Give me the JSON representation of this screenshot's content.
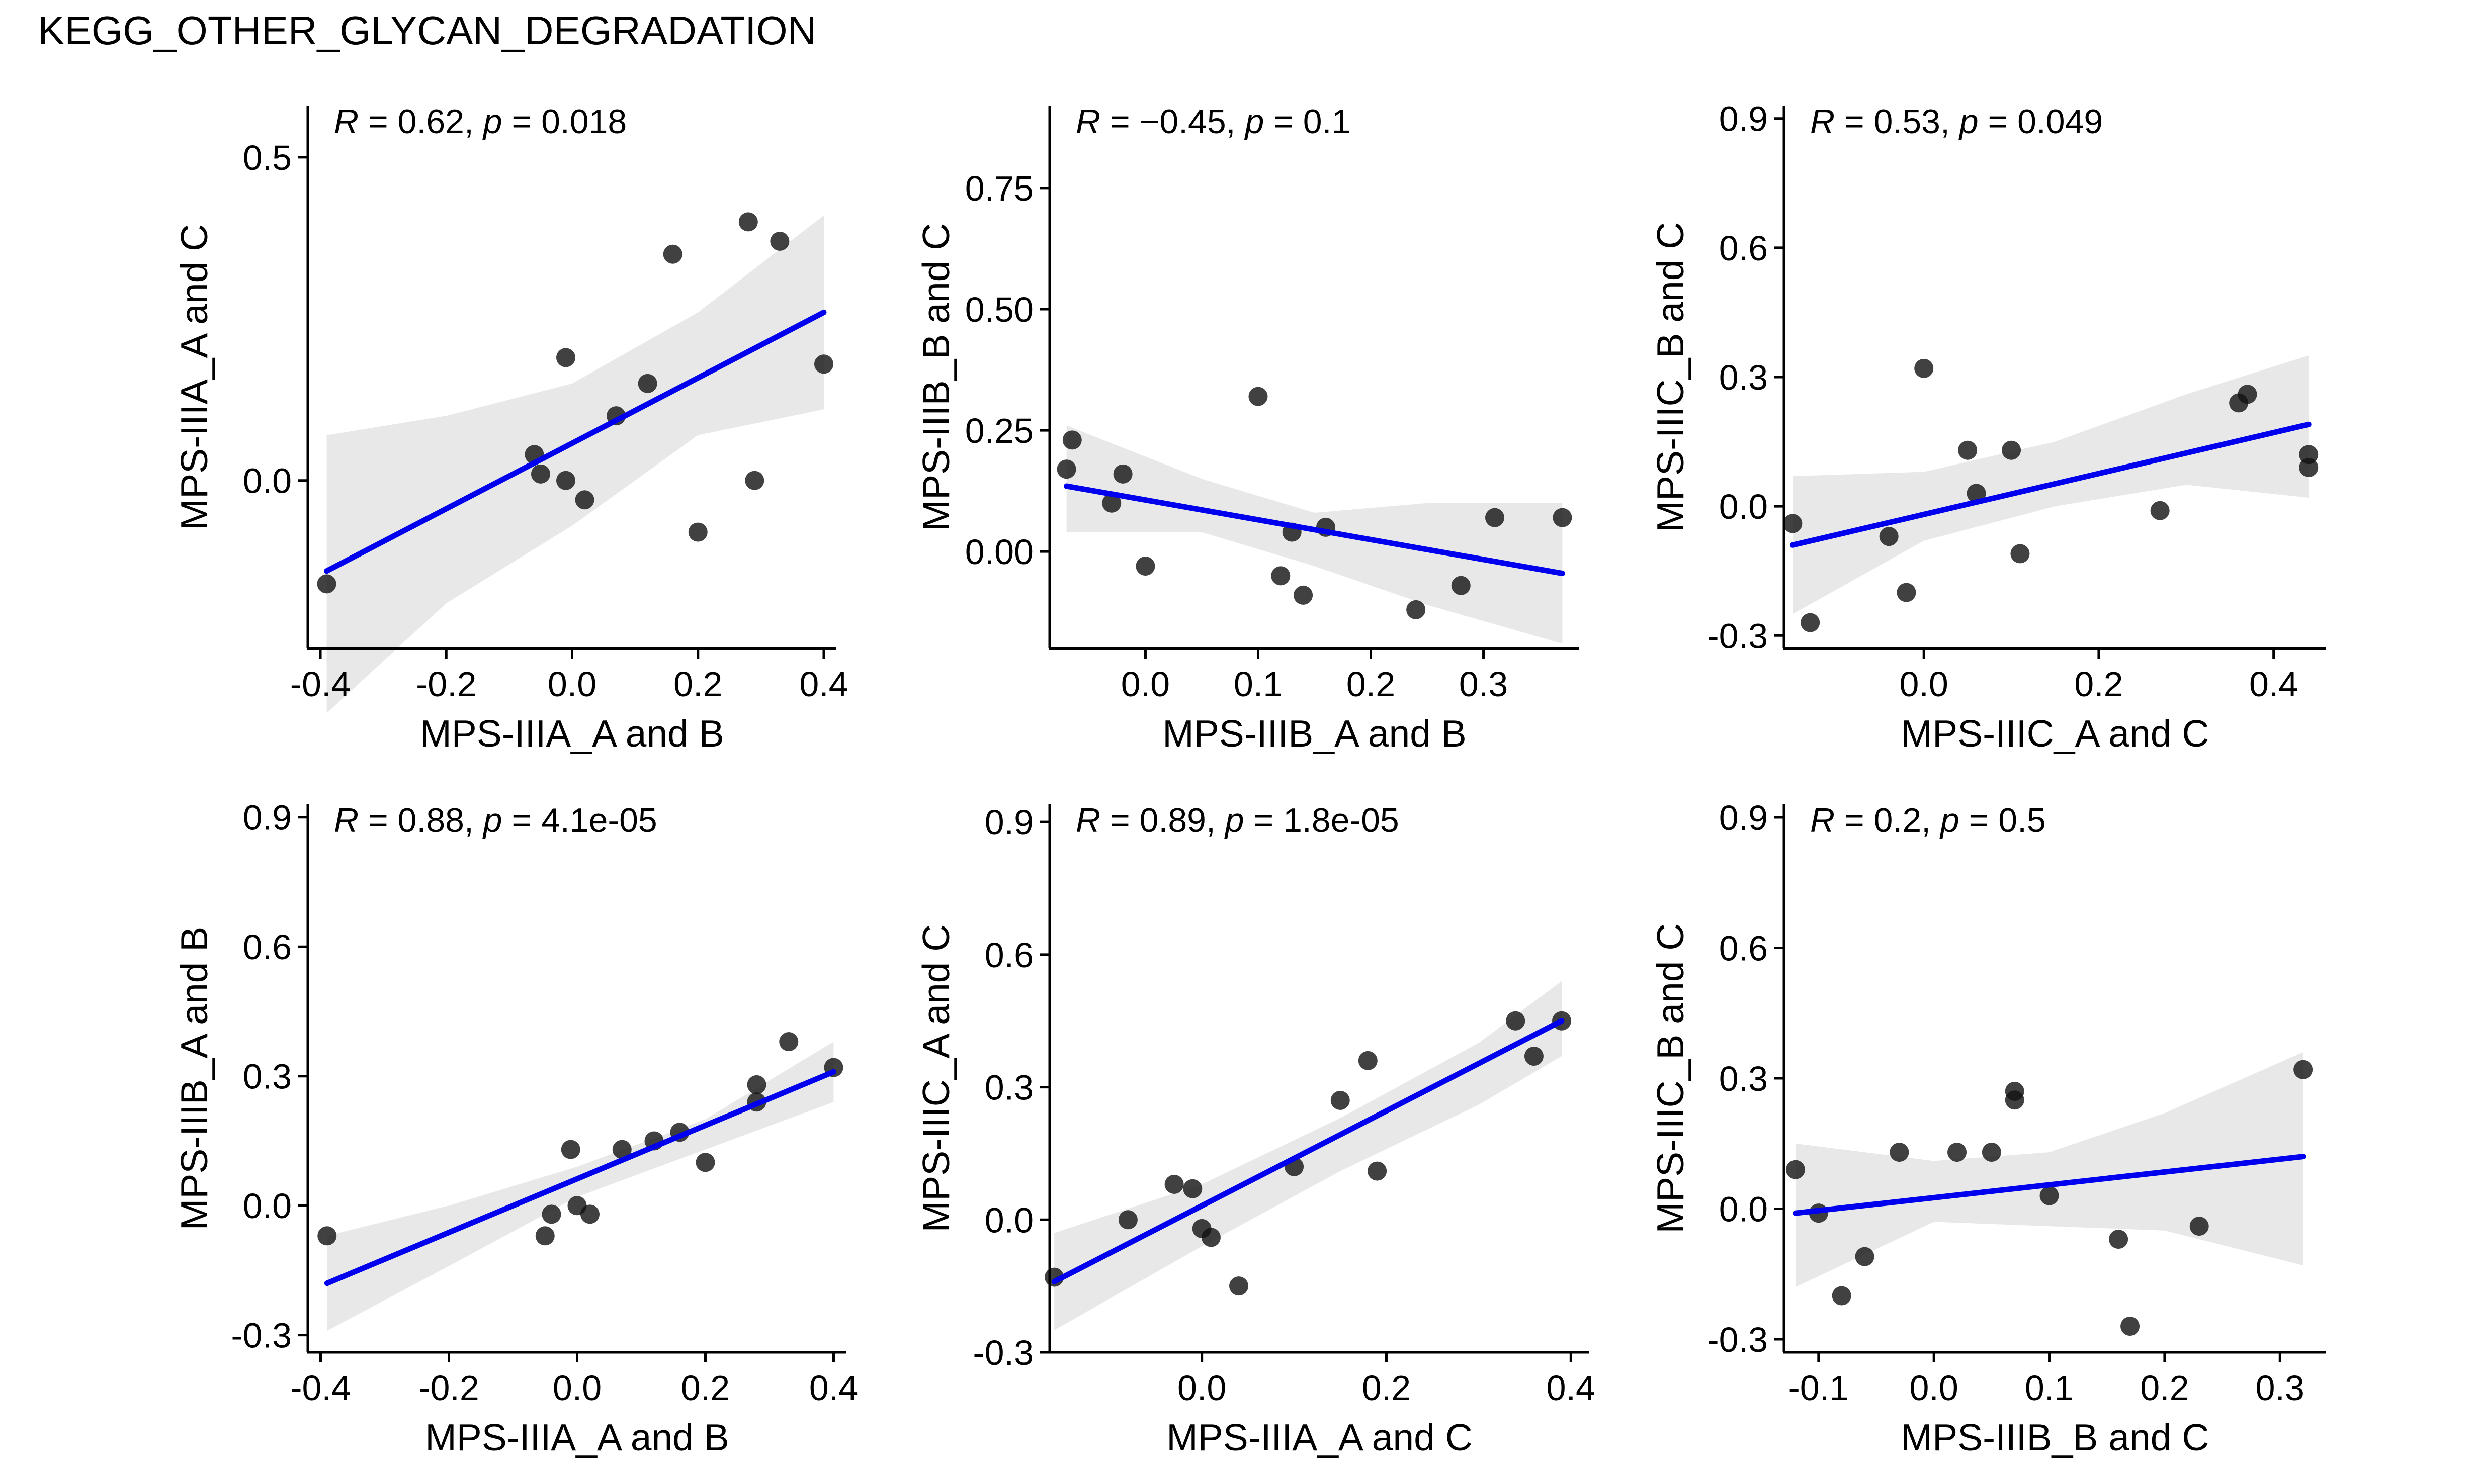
{
  "title": "KEGG_OTHER_GLYCAN_DEGRADATION",
  "colors": {
    "line": "#0000ee",
    "band": "#e8e8e8",
    "point": "#111111",
    "axis": "#000000"
  },
  "chart_data": [
    {
      "type": "scatter",
      "xlabel": "MPS-IIIA_A and B",
      "ylabel": "MPS-IIIA_A and C",
      "stat": {
        "R": "0.62",
        "p": "0.018"
      },
      "xlim": [
        -0.42,
        0.42
      ],
      "ylim": [
        -0.26,
        0.58
      ],
      "xticks": [
        -0.4,
        -0.2,
        0.0,
        0.2,
        0.4
      ],
      "xtick_labels": [
        "-0.4",
        "-0.2",
        "0.0",
        "0.2",
        "0.4"
      ],
      "yticks": [
        0.0,
        0.5
      ],
      "ytick_labels": [
        "0.0",
        "0.5"
      ],
      "points": [
        [
          -0.39,
          -0.16
        ],
        [
          -0.06,
          0.04
        ],
        [
          -0.05,
          0.01
        ],
        [
          -0.01,
          0.19
        ],
        [
          -0.01,
          0.0
        ],
        [
          0.02,
          -0.03
        ],
        [
          0.07,
          0.1
        ],
        [
          0.12,
          0.15
        ],
        [
          0.16,
          0.35
        ],
        [
          0.2,
          -0.08
        ],
        [
          0.28,
          0.4
        ],
        [
          0.29,
          0.0
        ],
        [
          0.33,
          0.37
        ],
        [
          0.4,
          0.18
        ]
      ],
      "fit": {
        "x": [
          -0.39,
          0.4
        ],
        "y": [
          -0.14,
          0.26
        ]
      },
      "band": {
        "x": [
          -0.39,
          -0.2,
          0.0,
          0.2,
          0.4
        ],
        "upper": [
          0.07,
          0.1,
          0.15,
          0.26,
          0.41
        ],
        "lower": [
          -0.36,
          -0.19,
          -0.07,
          0.07,
          0.11
        ]
      }
    },
    {
      "type": "scatter",
      "xlabel": "MPS-IIIB_A and B",
      "ylabel": "MPS-IIIB_B and C",
      "stat": {
        "R": "-0.45",
        "p": "0.1"
      },
      "xlim": [
        -0.085,
        0.385
      ],
      "ylim": [
        -0.2,
        0.92
      ],
      "xticks": [
        0.0,
        0.1,
        0.2,
        0.3
      ],
      "xtick_labels": [
        "0.0",
        "0.1",
        "0.2",
        "0.3"
      ],
      "yticks": [
        0.0,
        0.25,
        0.5,
        0.75
      ],
      "ytick_labels": [
        "0.00",
        "0.25",
        "0.50",
        "0.75"
      ],
      "points": [
        [
          -0.07,
          0.17
        ],
        [
          -0.065,
          0.23
        ],
        [
          -0.03,
          0.1
        ],
        [
          -0.02,
          0.16
        ],
        [
          0.0,
          -0.03
        ],
        [
          0.1,
          0.32
        ],
        [
          0.12,
          -0.05
        ],
        [
          0.13,
          0.04
        ],
        [
          0.14,
          -0.09
        ],
        [
          0.16,
          0.05
        ],
        [
          0.24,
          -0.12
        ],
        [
          0.28,
          -0.07
        ],
        [
          0.31,
          0.07
        ],
        [
          0.37,
          0.07
        ]
      ],
      "fit": {
        "x": [
          -0.07,
          0.37
        ],
        "y": [
          0.135,
          -0.045
        ]
      },
      "band": {
        "x": [
          -0.07,
          0.05,
          0.15,
          0.25,
          0.37
        ],
        "upper": [
          0.26,
          0.15,
          0.08,
          0.1,
          0.1
        ],
        "lower": [
          0.04,
          0.04,
          -0.03,
          -0.11,
          -0.19
        ]
      }
    },
    {
      "type": "scatter",
      "xlabel": "MPS-IIIC_A and C",
      "ylabel": "MPS-IIIC_B and C",
      "stat": {
        "R": "0.53",
        "p": "0.049"
      },
      "xlim": [
        -0.16,
        0.46
      ],
      "ylim": [
        -0.33,
        0.93
      ],
      "xticks": [
        0.0,
        0.2,
        0.4
      ],
      "xtick_labels": [
        "0.0",
        "0.2",
        "0.4"
      ],
      "yticks": [
        -0.3,
        0.0,
        0.3,
        0.6,
        0.9
      ],
      "ytick_labels": [
        "-0.3",
        "0.0",
        "0.3",
        "0.6",
        "0.9"
      ],
      "points": [
        [
          -0.15,
          -0.04
        ],
        [
          -0.13,
          -0.27
        ],
        [
          -0.04,
          -0.07
        ],
        [
          -0.02,
          -0.2
        ],
        [
          0.0,
          0.32
        ],
        [
          0.05,
          0.13
        ],
        [
          0.06,
          0.03
        ],
        [
          0.1,
          0.13
        ],
        [
          0.11,
          -0.11
        ],
        [
          0.27,
          -0.01
        ],
        [
          0.36,
          0.24
        ],
        [
          0.37,
          0.26
        ],
        [
          0.44,
          0.12
        ],
        [
          0.44,
          0.09
        ]
      ],
      "fit": {
        "x": [
          -0.15,
          0.44
        ],
        "y": [
          -0.09,
          0.19
        ]
      },
      "band": {
        "x": [
          -0.15,
          0.0,
          0.15,
          0.3,
          0.44
        ],
        "upper": [
          0.07,
          0.08,
          0.15,
          0.26,
          0.35
        ],
        "lower": [
          -0.25,
          -0.08,
          0.0,
          0.05,
          0.02
        ]
      }
    },
    {
      "type": "scatter",
      "xlabel": "MPS-IIIA_A and B",
      "ylabel": "MPS-IIIB_A and B",
      "stat": {
        "R": "0.88",
        "p": "4.1e-05"
      },
      "xlim": [
        -0.42,
        0.42
      ],
      "ylim": [
        -0.34,
        0.93
      ],
      "xticks": [
        -0.4,
        -0.2,
        0.0,
        0.2,
        0.4
      ],
      "xtick_labels": [
        "-0.4",
        "-0.2",
        "0.0",
        "0.2",
        "0.4"
      ],
      "yticks": [
        -0.3,
        0.0,
        0.3,
        0.6,
        0.9
      ],
      "ytick_labels": [
        "-0.3",
        "0.0",
        "0.3",
        "0.6",
        "0.9"
      ],
      "points": [
        [
          -0.39,
          -0.07
        ],
        [
          -0.05,
          -0.07
        ],
        [
          -0.04,
          -0.02
        ],
        [
          -0.01,
          0.13
        ],
        [
          0.0,
          0.0
        ],
        [
          0.02,
          -0.02
        ],
        [
          0.07,
          0.13
        ],
        [
          0.12,
          0.15
        ],
        [
          0.16,
          0.17
        ],
        [
          0.2,
          0.1
        ],
        [
          0.28,
          0.28
        ],
        [
          0.28,
          0.24
        ],
        [
          0.33,
          0.38
        ],
        [
          0.4,
          0.32
        ]
      ],
      "fit": {
        "x": [
          -0.39,
          0.4
        ],
        "y": [
          -0.18,
          0.31
        ]
      },
      "band": {
        "x": [
          -0.39,
          -0.2,
          0.0,
          0.2,
          0.4
        ],
        "upper": [
          -0.07,
          0.0,
          0.09,
          0.2,
          0.38
        ],
        "lower": [
          -0.29,
          -0.14,
          0.02,
          0.13,
          0.24
        ]
      }
    },
    {
      "type": "scatter",
      "xlabel": "MPS-IIIA_A and C",
      "ylabel": "MPS-IIIC_A and C",
      "stat": {
        "R": "0.89",
        "p": "1.8e-05"
      },
      "xlim": [
        -0.165,
        0.42
      ],
      "ylim": [
        -0.3,
        0.94
      ],
      "xticks": [
        0.0,
        0.2,
        0.4
      ],
      "xtick_labels": [
        "0.0",
        "0.2",
        "0.4"
      ],
      "yticks": [
        -0.3,
        0.0,
        0.3,
        0.6,
        0.9
      ],
      "ytick_labels": [
        "-0.3",
        "0.0",
        "0.3",
        "0.6",
        "0.9"
      ],
      "points": [
        [
          -0.16,
          -0.13
        ],
        [
          -0.08,
          0.0
        ],
        [
          -0.03,
          0.08
        ],
        [
          -0.01,
          0.07
        ],
        [
          0.0,
          -0.02
        ],
        [
          0.01,
          -0.04
        ],
        [
          0.04,
          -0.15
        ],
        [
          0.1,
          0.12
        ],
        [
          0.15,
          0.27
        ],
        [
          0.18,
          0.36
        ],
        [
          0.19,
          0.11
        ],
        [
          0.34,
          0.45
        ],
        [
          0.36,
          0.37
        ],
        [
          0.39,
          0.45
        ]
      ],
      "fit": {
        "x": [
          -0.16,
          0.39
        ],
        "y": [
          -0.14,
          0.45
        ]
      },
      "band": {
        "x": [
          -0.16,
          0.0,
          0.15,
          0.3,
          0.39
        ],
        "upper": [
          -0.03,
          0.08,
          0.23,
          0.4,
          0.54
        ],
        "lower": [
          -0.25,
          -0.06,
          0.11,
          0.26,
          0.37
        ]
      }
    },
    {
      "type": "scatter",
      "xlabel": "MPS-IIIB_B and C",
      "ylabel": "MPS-IIIC_B and C",
      "stat": {
        "R": "0.2",
        "p": "0.5"
      },
      "xlim": [
        -0.13,
        0.34
      ],
      "ylim": [
        -0.33,
        0.93
      ],
      "xticks": [
        -0.1,
        0.0,
        0.1,
        0.2,
        0.3
      ],
      "xtick_labels": [
        "-0.1",
        "0.0",
        "0.1",
        "0.2",
        "0.3"
      ],
      "yticks": [
        -0.3,
        0.0,
        0.3,
        0.6,
        0.9
      ],
      "ytick_labels": [
        "-0.3",
        "0.0",
        "0.3",
        "0.6",
        "0.9"
      ],
      "points": [
        [
          -0.12,
          0.09
        ],
        [
          -0.1,
          -0.01
        ],
        [
          -0.08,
          -0.2
        ],
        [
          -0.06,
          -0.11
        ],
        [
          -0.03,
          0.13
        ],
        [
          0.02,
          0.13
        ],
        [
          0.05,
          0.13
        ],
        [
          0.07,
          0.27
        ],
        [
          0.07,
          0.25
        ],
        [
          0.1,
          0.03
        ],
        [
          0.16,
          -0.07
        ],
        [
          0.17,
          -0.27
        ],
        [
          0.23,
          -0.04
        ],
        [
          0.32,
          0.32
        ]
      ],
      "fit": {
        "x": [
          -0.12,
          0.32
        ],
        "y": [
          -0.01,
          0.12
        ]
      },
      "band": {
        "x": [
          -0.12,
          0.0,
          0.1,
          0.2,
          0.32
        ],
        "upper": [
          0.15,
          0.11,
          0.13,
          0.22,
          0.36
        ],
        "lower": [
          -0.18,
          -0.03,
          -0.04,
          -0.05,
          -0.13
        ]
      }
    }
  ]
}
